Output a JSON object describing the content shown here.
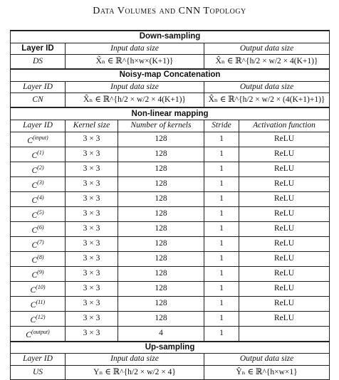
{
  "title": "Data Volumes and CNN Topology",
  "downsampling": {
    "section": "Down-sampling",
    "headers": [
      "Layer ID",
      "Input data size",
      "Output data size"
    ],
    "layer": "DS",
    "input": "X̃ₙ ∈ ℝ^{h×w×(K+1)}",
    "output": "X̂ₙ ∈ ℝ^{h/2 × w/2 × 4(K+1)}"
  },
  "concat": {
    "section": "Noisy-map Concatenation",
    "headers": [
      "Layer ID",
      "Input data size",
      "Output data size"
    ],
    "layer": "CN",
    "input": "X̂ₙ ∈ ℝ^{h/2 × w/2 × 4(K+1)}",
    "output": "X̂ₙ ∈ ℝ^{h/2 × w/2 × (4(K+1)+1)}"
  },
  "nonlinear": {
    "section": "Non-linear mapping",
    "headers": [
      "Layer ID",
      "Kernel size",
      "Number of kernels",
      "Stride",
      "Activation function"
    ],
    "rows": [
      {
        "id": "C",
        "sup": "(input)",
        "kernel": "3 × 3",
        "num": "128",
        "stride": "1",
        "act": "ReLU"
      },
      {
        "id": "C",
        "sup": "(1)",
        "kernel": "3 × 3",
        "num": "128",
        "stride": "1",
        "act": "ReLU"
      },
      {
        "id": "C",
        "sup": "(2)",
        "kernel": "3 × 3",
        "num": "128",
        "stride": "1",
        "act": "ReLU"
      },
      {
        "id": "C",
        "sup": "(3)",
        "kernel": "3 × 3",
        "num": "128",
        "stride": "1",
        "act": "ReLU"
      },
      {
        "id": "C",
        "sup": "(4)",
        "kernel": "3 × 3",
        "num": "128",
        "stride": "1",
        "act": "ReLU"
      },
      {
        "id": "C",
        "sup": "(5)",
        "kernel": "3 × 3",
        "num": "128",
        "stride": "1",
        "act": "ReLU"
      },
      {
        "id": "C",
        "sup": "(6)",
        "kernel": "3 × 3",
        "num": "128",
        "stride": "1",
        "act": "ReLU"
      },
      {
        "id": "C",
        "sup": "(7)",
        "kernel": "3 × 3",
        "num": "128",
        "stride": "1",
        "act": "ReLU"
      },
      {
        "id": "C",
        "sup": "(8)",
        "kernel": "3 × 3",
        "num": "128",
        "stride": "1",
        "act": "ReLU"
      },
      {
        "id": "C",
        "sup": "(9)",
        "kernel": "3 × 3",
        "num": "128",
        "stride": "1",
        "act": "ReLU"
      },
      {
        "id": "C",
        "sup": "(10)",
        "kernel": "3 × 3",
        "num": "128",
        "stride": "1",
        "act": "ReLU"
      },
      {
        "id": "C",
        "sup": "(11)",
        "kernel": "3 × 3",
        "num": "128",
        "stride": "1",
        "act": "ReLU"
      },
      {
        "id": "C",
        "sup": "(12)",
        "kernel": "3 × 3",
        "num": "128",
        "stride": "1",
        "act": "ReLU"
      },
      {
        "id": "C",
        "sup": "(output)",
        "kernel": "3 × 3",
        "num": "4",
        "stride": "1",
        "act": ""
      }
    ]
  },
  "upsampling": {
    "section": "Up-sampling",
    "headers": [
      "Layer ID",
      "Input data size",
      "Output data size"
    ],
    "layer": "US",
    "input": "Yₙ ∈ ℝ^{h/2 × w/2 × 4}",
    "output": "Ŷₙ ∈ ℝ^{h×w×1}"
  }
}
